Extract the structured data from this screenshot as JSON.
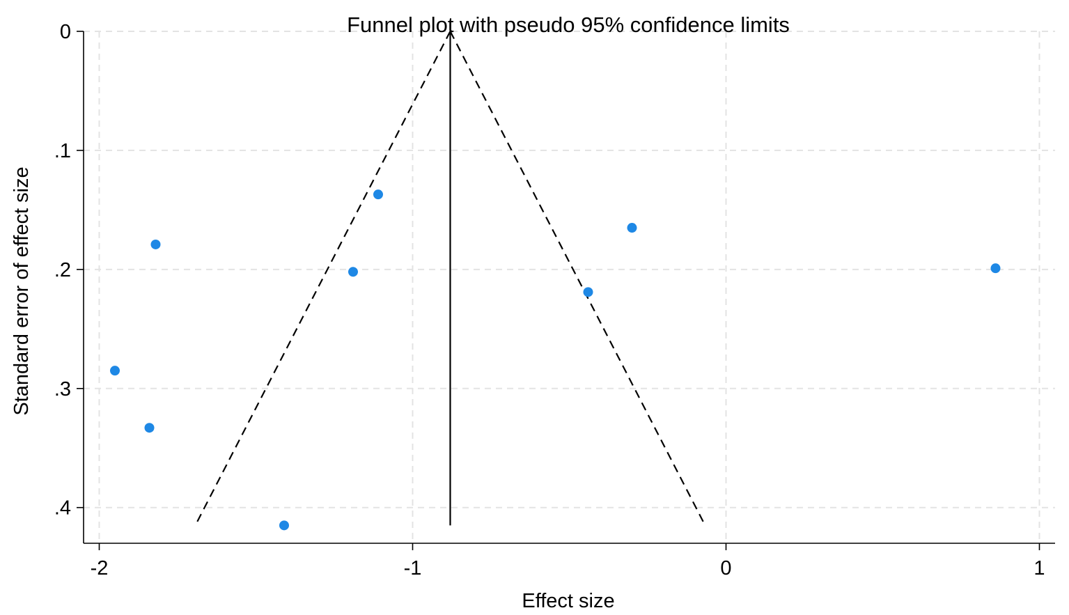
{
  "chart_data": {
    "type": "scatter",
    "title": "Funnel plot with pseudo 95% confidence limits",
    "xlabel": "Effect size",
    "ylabel": "Standard error of effect size",
    "xlim": [
      -2.05,
      1.05
    ],
    "ylim": [
      0,
      0.43
    ],
    "y_reversed": true,
    "grid": true,
    "legend": "none",
    "x_ticks": [
      {
        "value": -2,
        "label": "-2"
      },
      {
        "value": -1,
        "label": "-1"
      },
      {
        "value": 0,
        "label": "0"
      },
      {
        "value": 1,
        "label": "1"
      }
    ],
    "y_ticks": [
      {
        "value": 0,
        "label": "0"
      },
      {
        "value": 0.1,
        "label": ".1"
      },
      {
        "value": 0.2,
        "label": ".2"
      },
      {
        "value": 0.3,
        "label": ".3"
      },
      {
        "value": 0.4,
        "label": ".4"
      }
    ],
    "points": [
      {
        "x": -1.95,
        "y": 0.285
      },
      {
        "x": -1.82,
        "y": 0.179
      },
      {
        "x": -1.84,
        "y": 0.333
      },
      {
        "x": -1.41,
        "y": 0.415
      },
      {
        "x": -1.19,
        "y": 0.202
      },
      {
        "x": -1.11,
        "y": 0.137
      },
      {
        "x": -0.44,
        "y": 0.219
      },
      {
        "x": -0.3,
        "y": 0.165
      },
      {
        "x": 0.86,
        "y": 0.199
      }
    ],
    "pooled_effect": -0.88,
    "funnel_max_se": 0.415,
    "colors": {
      "points": "#1e88e5",
      "grid": "#e3e3e3",
      "lines": "#000000"
    }
  }
}
